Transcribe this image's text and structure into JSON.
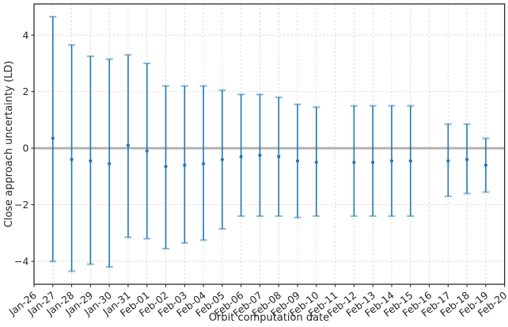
{
  "figure": {
    "background": "#ffffff"
  },
  "chart_data": {
    "type": "errorbar",
    "title": "",
    "xlabel": "Orbit computation date",
    "ylabel": "Close approach uncertainty (LD)",
    "categories": [
      "Jan-26",
      "Jan-27",
      "Jan-28",
      "Jan-29",
      "Jan-30",
      "Jan-31",
      "Feb-01",
      "Feb-02",
      "Feb-03",
      "Feb-04",
      "Feb-05",
      "Feb-06",
      "Feb-07",
      "Feb-08",
      "Feb-09",
      "Feb-10",
      "Feb-11",
      "Feb-12",
      "Feb-13",
      "Feb-14",
      "Feb-15",
      "Feb-16",
      "Feb-17",
      "Feb-18",
      "Feb-19",
      "Feb-20"
    ],
    "x_tick_rotation_deg": 38,
    "ylim": [
      -4.81,
      5.1
    ],
    "yticks": [
      {
        "value": 4,
        "label": "4"
      },
      {
        "value": 2,
        "label": "2"
      },
      {
        "value": 0,
        "label": "0"
      },
      {
        "value": -2,
        "label": "−2"
      },
      {
        "value": -4,
        "label": "−4"
      }
    ],
    "grid": true,
    "legend": "none",
    "zero_line": {
      "show": true,
      "value": 0
    },
    "series": [
      {
        "name": "close approach uncertainty",
        "marker": "circle",
        "points": [
          {
            "date": "Jan-27",
            "center": 0.35,
            "upper": 4.65,
            "lower": -4.0
          },
          {
            "date": "Jan-28",
            "center": -0.4,
            "upper": 3.65,
            "lower": -4.35
          },
          {
            "date": "Jan-29",
            "center": -0.45,
            "upper": 3.25,
            "lower": -4.1
          },
          {
            "date": "Jan-30",
            "center": -0.55,
            "upper": 3.15,
            "lower": -4.2
          },
          {
            "date": "Jan-31",
            "center": 0.1,
            "upper": 3.3,
            "lower": -3.15
          },
          {
            "date": "Feb-01",
            "center": -0.1,
            "upper": 3.0,
            "lower": -3.2
          },
          {
            "date": "Feb-02",
            "center": -0.65,
            "upper": 2.2,
            "lower": -3.55
          },
          {
            "date": "Feb-03",
            "center": -0.6,
            "upper": 2.2,
            "lower": -3.35
          },
          {
            "date": "Feb-04",
            "center": -0.55,
            "upper": 2.2,
            "lower": -3.25
          },
          {
            "date": "Feb-05",
            "center": -0.4,
            "upper": 2.05,
            "lower": -2.85
          },
          {
            "date": "Feb-06",
            "center": -0.3,
            "upper": 1.9,
            "lower": -2.4
          },
          {
            "date": "Feb-07",
            "center": -0.25,
            "upper": 1.9,
            "lower": -2.4
          },
          {
            "date": "Feb-08",
            "center": -0.3,
            "upper": 1.8,
            "lower": -2.4
          },
          {
            "date": "Feb-09",
            "center": -0.45,
            "upper": 1.55,
            "lower": -2.45
          },
          {
            "date": "Feb-10",
            "center": -0.5,
            "upper": 1.45,
            "lower": -2.4
          },
          {
            "date": "Feb-12",
            "center": -0.5,
            "upper": 1.5,
            "lower": -2.4
          },
          {
            "date": "Feb-13",
            "center": -0.5,
            "upper": 1.5,
            "lower": -2.4
          },
          {
            "date": "Feb-14",
            "center": -0.45,
            "upper": 1.5,
            "lower": -2.4
          },
          {
            "date": "Feb-15",
            "center": -0.45,
            "upper": 1.5,
            "lower": -2.4
          },
          {
            "date": "Feb-17",
            "center": -0.45,
            "upper": 0.85,
            "lower": -1.7
          },
          {
            "date": "Feb-18",
            "center": -0.4,
            "upper": 0.85,
            "lower": -1.6
          },
          {
            "date": "Feb-19",
            "center": -0.6,
            "upper": 0.35,
            "lower": -1.55
          }
        ]
      }
    ],
    "colors": {
      "errorbar_line": "#1f77b4",
      "errorbar_cap": "rgba(31,119,180,0.5)",
      "marker": "#1f77b4",
      "zero_line": "#b0b0b0",
      "grid": "#d2d2d2",
      "spine": "#1a1a1a",
      "text": "#262626"
    }
  }
}
